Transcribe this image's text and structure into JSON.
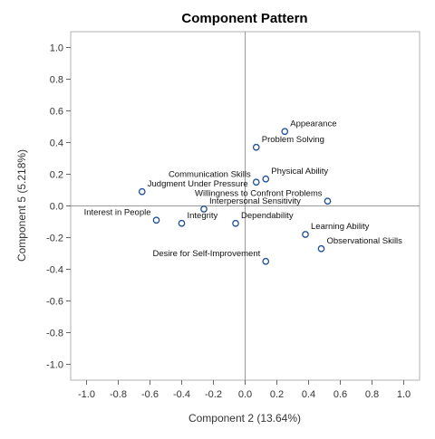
{
  "chart_data": {
    "type": "scatter",
    "title": "Component Pattern",
    "xlabel": "Component 2 (13.64%)",
    "ylabel": "Component 5 (5.218%)",
    "xlim": [
      -1.1,
      1.1
    ],
    "ylim": [
      -1.1,
      1.1
    ],
    "x_ticks": [
      "-1.0",
      "-0.8",
      "-0.6",
      "-0.4",
      "-0.2",
      "0.0",
      "0.2",
      "0.4",
      "0.6",
      "0.8",
      "1.0"
    ],
    "y_ticks": [
      "1.0",
      "0.8",
      "0.6",
      "0.4",
      "0.2",
      "0.0",
      "-0.2",
      "-0.4",
      "-0.6",
      "-0.8",
      "-1.0"
    ],
    "reference_lines": {
      "x": 0,
      "y": 0
    },
    "grid": false,
    "points": [
      {
        "label": "Appearance",
        "x": 0.25,
        "y": 0.47,
        "anchor": "start"
      },
      {
        "label": "Problem Solving",
        "x": 0.07,
        "y": 0.37,
        "anchor": "start"
      },
      {
        "label": "Physical Ability",
        "x": 0.13,
        "y": 0.17,
        "anchor": "start"
      },
      {
        "label": "Communication Skills",
        "x": 0.07,
        "y": 0.15,
        "anchor": "end"
      },
      {
        "label": "Interpersonal Sensitivity",
        "x": -0.26,
        "y": -0.02,
        "anchor": "start"
      },
      {
        "label": "Judgment Under Pressure",
        "x": -0.65,
        "y": 0.09,
        "anchor": "start"
      },
      {
        "label": "Willingness to Confront Problems",
        "x": 0.52,
        "y": 0.03,
        "anchor": "end"
      },
      {
        "label": "Interest in People",
        "x": -0.56,
        "y": -0.09,
        "anchor": "end"
      },
      {
        "label": "Integrity",
        "x": -0.4,
        "y": -0.11,
        "anchor": "start"
      },
      {
        "label": "Dependability",
        "x": -0.06,
        "y": -0.11,
        "anchor": "start"
      },
      {
        "label": "Learning Ability",
        "x": 0.38,
        "y": -0.18,
        "anchor": "start"
      },
      {
        "label": "Observational Skills",
        "x": 0.48,
        "y": -0.27,
        "anchor": "start"
      },
      {
        "label": "Desire for Self-Improvement",
        "x": 0.13,
        "y": -0.35,
        "anchor": "end"
      }
    ]
  }
}
